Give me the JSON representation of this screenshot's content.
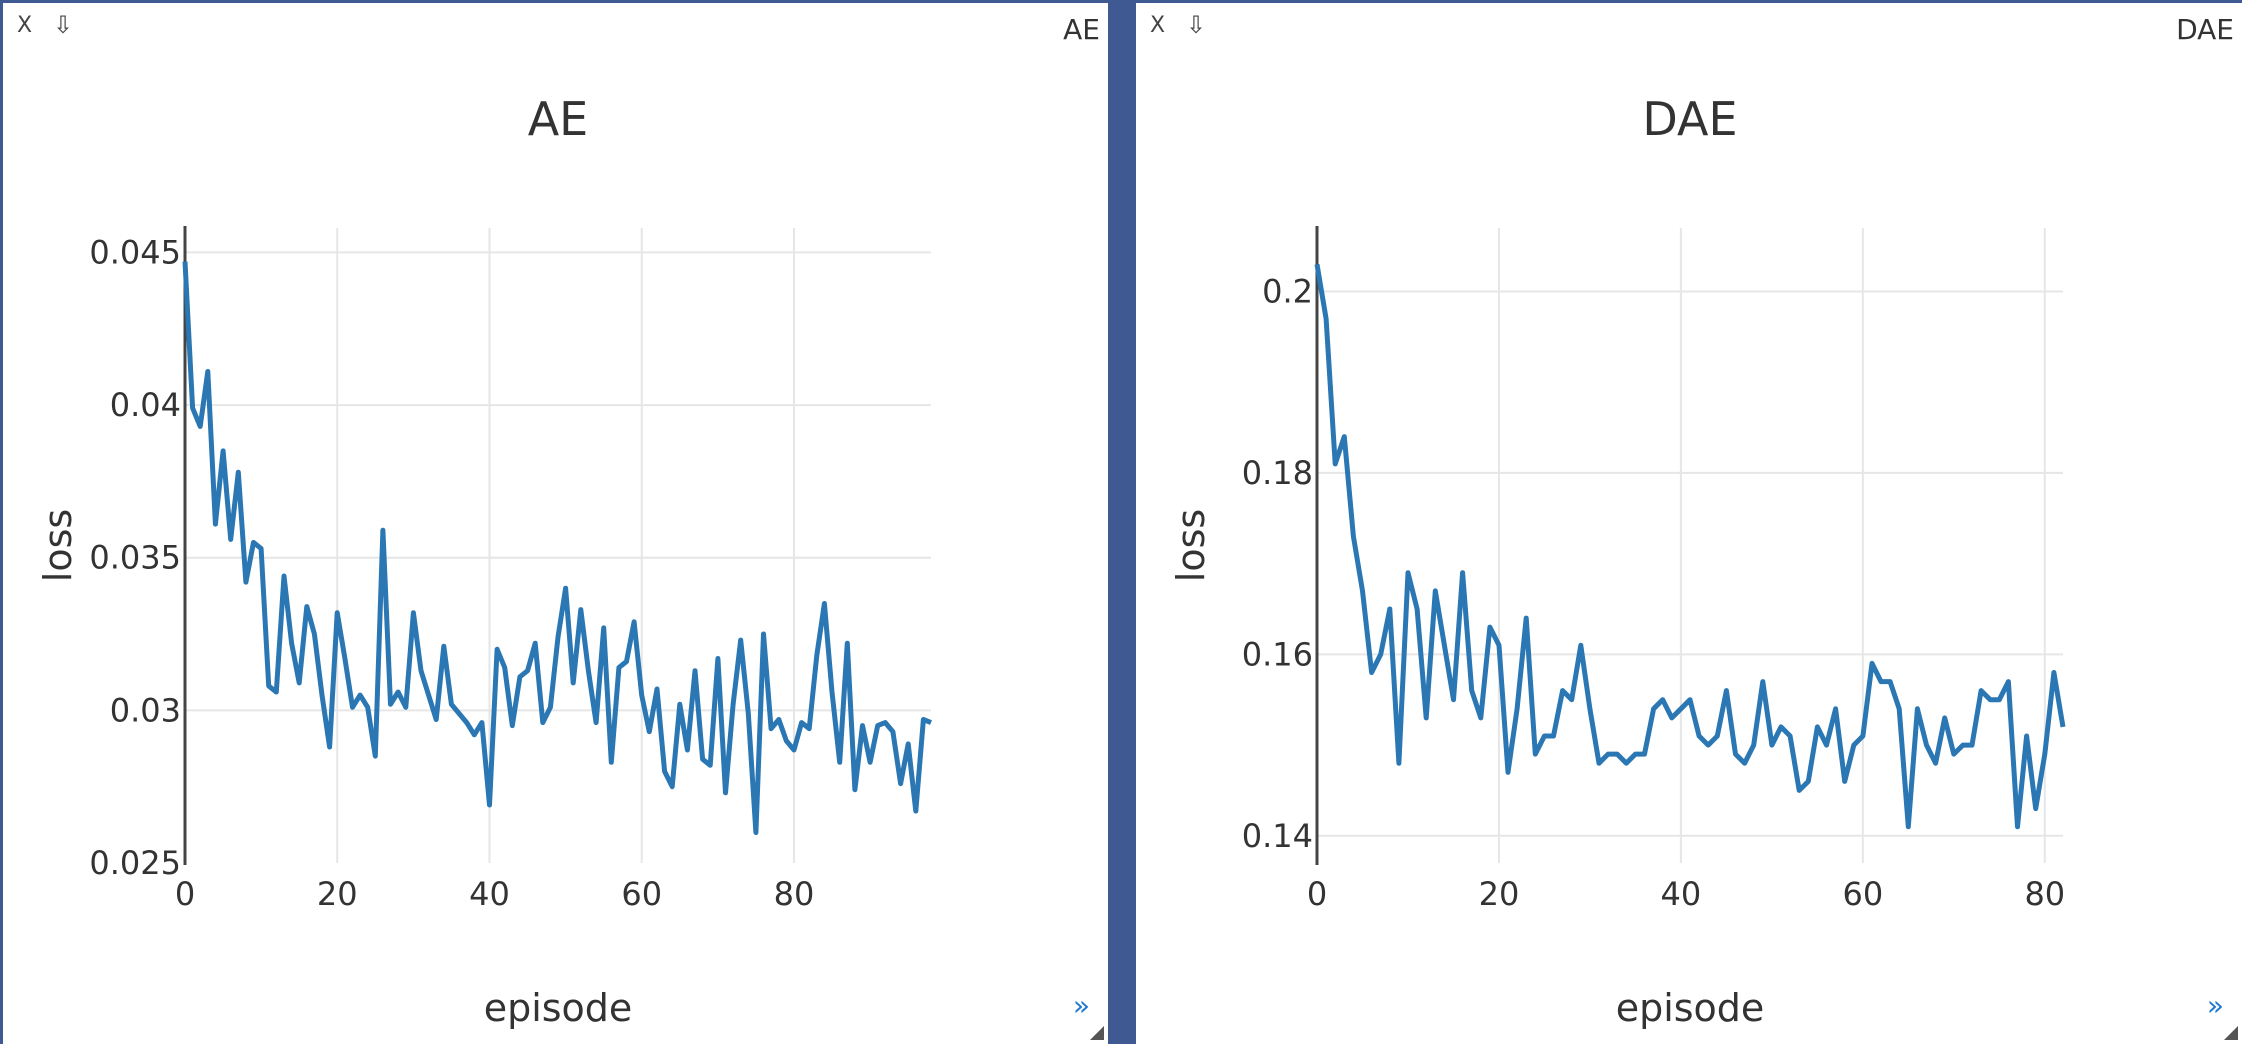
{
  "windows": [
    {
      "title": "AE",
      "close_label": "X",
      "download_label": "⇩",
      "expand_label": "»"
    },
    {
      "title": "DAE",
      "close_label": "X",
      "download_label": "⇩",
      "expand_label": "»"
    }
  ],
  "chart_data": [
    {
      "type": "line",
      "title": "AE",
      "xlabel": "episode",
      "ylabel": "loss",
      "xlim": [
        0,
        98
      ],
      "ylim": [
        0.025,
        0.0458
      ],
      "xticks": [
        0,
        20,
        40,
        60,
        80
      ],
      "xtick_labels": [
        "0",
        "20",
        "40",
        "60",
        "80"
      ],
      "yticks": [
        0.025,
        0.03,
        0.035,
        0.04,
        0.045
      ],
      "ytick_labels": [
        "0.025",
        "0.03",
        "0.035",
        "0.04",
        "0.045"
      ],
      "grid": true,
      "color": "#2a77b4",
      "series": [
        {
          "x": [
            0,
            1,
            2,
            3,
            4,
            5,
            6,
            7,
            8,
            9,
            10,
            11,
            12,
            13,
            14,
            15,
            16,
            17,
            18,
            19,
            20,
            21,
            22,
            23,
            24,
            25,
            26,
            27,
            28,
            29,
            30,
            31,
            32,
            33,
            34,
            35,
            36,
            37,
            38,
            39,
            40,
            41,
            42,
            43,
            44,
            45,
            46,
            47,
            48,
            49,
            50,
            51,
            52,
            53,
            54,
            55,
            56,
            57,
            58,
            59,
            60,
            61,
            62,
            63,
            64,
            65,
            66,
            67,
            68,
            69,
            70,
            71,
            72,
            73,
            74,
            75,
            76,
            77,
            78,
            79,
            80,
            81,
            82,
            83,
            84,
            85,
            86,
            87,
            88,
            89,
            90,
            91,
            92,
            93,
            94,
            95,
            96,
            97,
            98
          ],
          "y": [
            0.0447,
            0.0399,
            0.0393,
            0.0411,
            0.0361,
            0.0385,
            0.0356,
            0.0378,
            0.0342,
            0.0355,
            0.0353,
            0.0308,
            0.0306,
            0.0344,
            0.0322,
            0.0309,
            0.0334,
            0.0325,
            0.0305,
            0.0288,
            0.0332,
            0.0317,
            0.0301,
            0.0305,
            0.0301,
            0.0285,
            0.0359,
            0.0302,
            0.0306,
            0.0301,
            0.0332,
            0.0313,
            0.0305,
            0.0297,
            0.0321,
            0.0302,
            0.0299,
            0.0296,
            0.0292,
            0.0296,
            0.0269,
            0.032,
            0.0314,
            0.0295,
            0.0311,
            0.0313,
            0.0322,
            0.0296,
            0.0301,
            0.0324,
            0.034,
            0.0309,
            0.0333,
            0.0313,
            0.0296,
            0.0327,
            0.0283,
            0.0314,
            0.0316,
            0.0329,
            0.0305,
            0.0293,
            0.0307,
            0.028,
            0.0275,
            0.0302,
            0.0287,
            0.0313,
            0.0284,
            0.0282,
            0.0317,
            0.0273,
            0.0302,
            0.0323,
            0.0299,
            0.026,
            0.0325,
            0.0294,
            0.0297,
            0.029,
            0.0287,
            0.0296,
            0.0294,
            0.0318,
            0.0335,
            0.0306,
            0.0283,
            0.0322,
            0.0274,
            0.0295,
            0.0283,
            0.0295,
            0.0296,
            0.0293,
            0.0276,
            0.0289,
            0.0267,
            0.0297,
            0.0296
          ]
        }
      ]
    },
    {
      "type": "line",
      "title": "DAE",
      "xlabel": "episode",
      "ylabel": "loss",
      "xlim": [
        0,
        82
      ],
      "ylim": [
        0.137,
        0.207
      ],
      "xticks": [
        0,
        20,
        40,
        60,
        80
      ],
      "xtick_labels": [
        "0",
        "20",
        "40",
        "60",
        "80"
      ],
      "yticks": [
        0.14,
        0.16,
        0.18,
        0.2
      ],
      "ytick_labels": [
        "0.14",
        "0.16",
        "0.18",
        "0.2"
      ],
      "grid": true,
      "color": "#2a77b4",
      "series": [
        {
          "x": [
            0,
            1,
            2,
            3,
            4,
            5,
            6,
            7,
            8,
            9,
            10,
            11,
            12,
            13,
            14,
            15,
            16,
            17,
            18,
            19,
            20,
            21,
            22,
            23,
            24,
            25,
            26,
            27,
            28,
            29,
            30,
            31,
            32,
            33,
            34,
            35,
            36,
            37,
            38,
            39,
            40,
            41,
            42,
            43,
            44,
            45,
            46,
            47,
            48,
            49,
            50,
            51,
            52,
            53,
            54,
            55,
            56,
            57,
            58,
            59,
            60,
            61,
            62,
            63,
            64,
            65,
            66,
            67,
            68,
            69,
            70,
            71,
            72,
            73,
            74,
            75,
            76,
            77,
            78,
            79,
            80,
            81,
            82
          ],
          "y": [
            0.203,
            0.197,
            0.181,
            0.184,
            0.173,
            0.167,
            0.158,
            0.16,
            0.165,
            0.148,
            0.169,
            0.165,
            0.153,
            0.167,
            0.161,
            0.155,
            0.169,
            0.156,
            0.153,
            0.163,
            0.161,
            0.147,
            0.154,
            0.164,
            0.149,
            0.151,
            0.151,
            0.156,
            0.155,
            0.161,
            0.154,
            0.148,
            0.149,
            0.149,
            0.148,
            0.149,
            0.149,
            0.154,
            0.155,
            0.153,
            0.154,
            0.155,
            0.151,
            0.15,
            0.151,
            0.156,
            0.149,
            0.148,
            0.15,
            0.157,
            0.15,
            0.152,
            0.151,
            0.145,
            0.146,
            0.152,
            0.15,
            0.154,
            0.146,
            0.15,
            0.151,
            0.159,
            0.157,
            0.157,
            0.154,
            0.141,
            0.154,
            0.15,
            0.148,
            0.153,
            0.149,
            0.15,
            0.15,
            0.156,
            0.155,
            0.155,
            0.157,
            0.141,
            0.151,
            0.143,
            0.149,
            0.158,
            0.152
          ]
        }
      ]
    }
  ]
}
